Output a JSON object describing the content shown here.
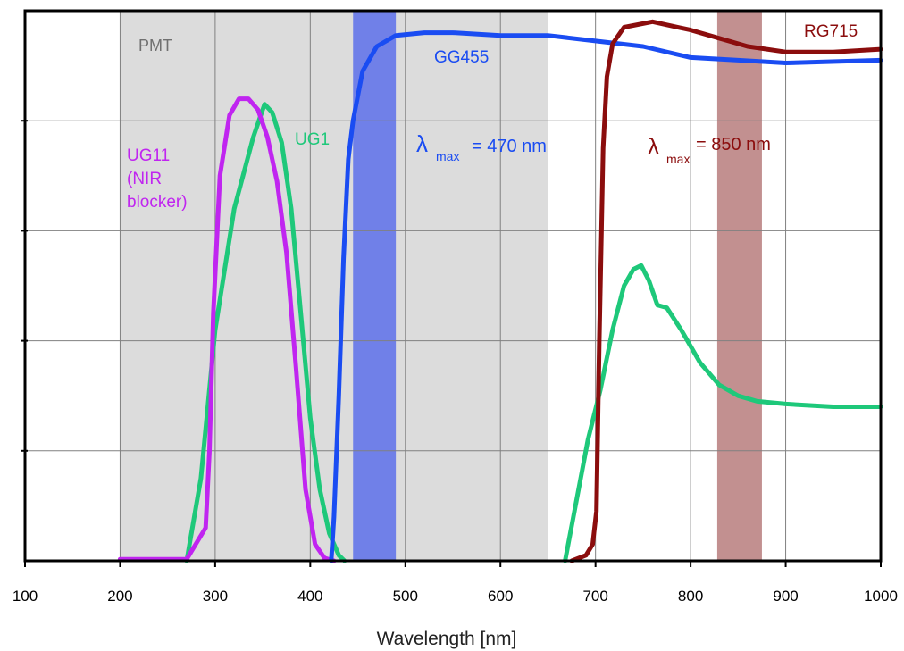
{
  "chart_data": {
    "type": "line",
    "xlabel": "Wavelength [nm]",
    "ylabel": "",
    "xlim": [
      100,
      1000
    ],
    "ylim": [
      0,
      1
    ],
    "x_ticks": [
      100,
      200,
      300,
      400,
      500,
      600,
      700,
      800,
      900,
      1000
    ],
    "x_tick_labels": [
      "100",
      "200",
      "300",
      "400",
      "500",
      "600",
      "700",
      "800",
      "900",
      "1000"
    ],
    "y_gridlines": [
      0.2,
      0.4,
      0.6,
      0.8
    ],
    "grid": true,
    "regions": [
      {
        "name": "PMT",
        "x0": 200,
        "x1": 650,
        "color": "#dcdcdc",
        "label_color": "#707070"
      },
      {
        "name": "",
        "x0": 445,
        "x1": 490,
        "color": "#7080e8"
      },
      {
        "name": "",
        "x0": 828,
        "x1": 875,
        "color": "#c29090"
      }
    ],
    "series": [
      {
        "name": "UG1",
        "color": "#1ec87a",
        "segments": [
          [
            [
              270,
              0.0
            ],
            [
              285,
              0.15
            ],
            [
              300,
              0.42
            ],
            [
              320,
              0.64
            ],
            [
              340,
              0.77
            ],
            [
              352,
              0.83
            ],
            [
              360,
              0.815
            ],
            [
              370,
              0.76
            ],
            [
              380,
              0.64
            ],
            [
              390,
              0.45
            ],
            [
              400,
              0.26
            ],
            [
              410,
              0.13
            ],
            [
              420,
              0.05
            ],
            [
              430,
              0.01
            ],
            [
              436,
              0.0
            ]
          ],
          [
            [
              668,
              0.0
            ],
            [
              680,
              0.11
            ],
            [
              692,
              0.22
            ],
            [
              705,
              0.31
            ],
            [
              718,
              0.42
            ],
            [
              730,
              0.5
            ],
            [
              740,
              0.53
            ],
            [
              748,
              0.537
            ],
            [
              756,
              0.51
            ],
            [
              765,
              0.465
            ],
            [
              775,
              0.46
            ],
            [
              790,
              0.42
            ],
            [
              810,
              0.36
            ],
            [
              830,
              0.32
            ],
            [
              850,
              0.3
            ],
            [
              870,
              0.29
            ],
            [
              900,
              0.285
            ],
            [
              950,
              0.28
            ],
            [
              1000,
              0.28
            ]
          ]
        ]
      },
      {
        "name": "UG11 (NIR blocker)",
        "label_lines": [
          "UG11",
          "(NIR",
          "blocker)"
        ],
        "color": "#c025f0",
        "segments": [
          [
            [
              200,
              0.003
            ],
            [
              270,
              0.003
            ],
            [
              290,
              0.06
            ],
            [
              294,
              0.2
            ],
            [
              298,
              0.45
            ],
            [
              305,
              0.7
            ],
            [
              315,
              0.81
            ],
            [
              325,
              0.84
            ],
            [
              335,
              0.84
            ],
            [
              345,
              0.82
            ],
            [
              355,
              0.77
            ],
            [
              365,
              0.69
            ],
            [
              375,
              0.56
            ],
            [
              385,
              0.35
            ],
            [
              395,
              0.13
            ],
            [
              405,
              0.03
            ],
            [
              415,
              0.005
            ],
            [
              425,
              0.0
            ]
          ]
        ]
      },
      {
        "name": "GG455",
        "color": "#1a4cf2",
        "segments": [
          [
            [
              422,
              0.0
            ],
            [
              425,
              0.08
            ],
            [
              430,
              0.3
            ],
            [
              435,
              0.55
            ],
            [
              440,
              0.73
            ],
            [
              445,
              0.8
            ],
            [
              455,
              0.89
            ],
            [
              470,
              0.935
            ],
            [
              490,
              0.955
            ],
            [
              520,
              0.96
            ],
            [
              550,
              0.96
            ],
            [
              600,
              0.955
            ],
            [
              650,
              0.955
            ],
            [
              700,
              0.945
            ],
            [
              750,
              0.935
            ],
            [
              800,
              0.915
            ],
            [
              850,
              0.91
            ],
            [
              900,
              0.905
            ],
            [
              1000,
              0.91
            ]
          ]
        ]
      },
      {
        "name": "RG715",
        "color": "#8b0d0d",
        "segments": [
          [
            [
              675,
              0.0
            ],
            [
              690,
              0.01
            ],
            [
              697,
              0.03
            ],
            [
              701,
              0.09
            ],
            [
              704,
              0.4
            ],
            [
              708,
              0.75
            ],
            [
              712,
              0.88
            ],
            [
              718,
              0.94
            ],
            [
              730,
              0.97
            ],
            [
              760,
              0.98
            ],
            [
              800,
              0.965
            ],
            [
              830,
              0.95
            ],
            [
              860,
              0.935
            ],
            [
              900,
              0.925
            ],
            [
              950,
              0.925
            ],
            [
              1000,
              0.93
            ]
          ]
        ]
      }
    ],
    "annotations": [
      {
        "text_main": "λ",
        "text_sub": "max",
        "text_after": "= 470 nm",
        "color": "#1a4cf2"
      },
      {
        "text_main": "λ",
        "text_sub": "max",
        "text_after": "= 850 nm",
        "color": "#8b0d0d"
      }
    ]
  }
}
